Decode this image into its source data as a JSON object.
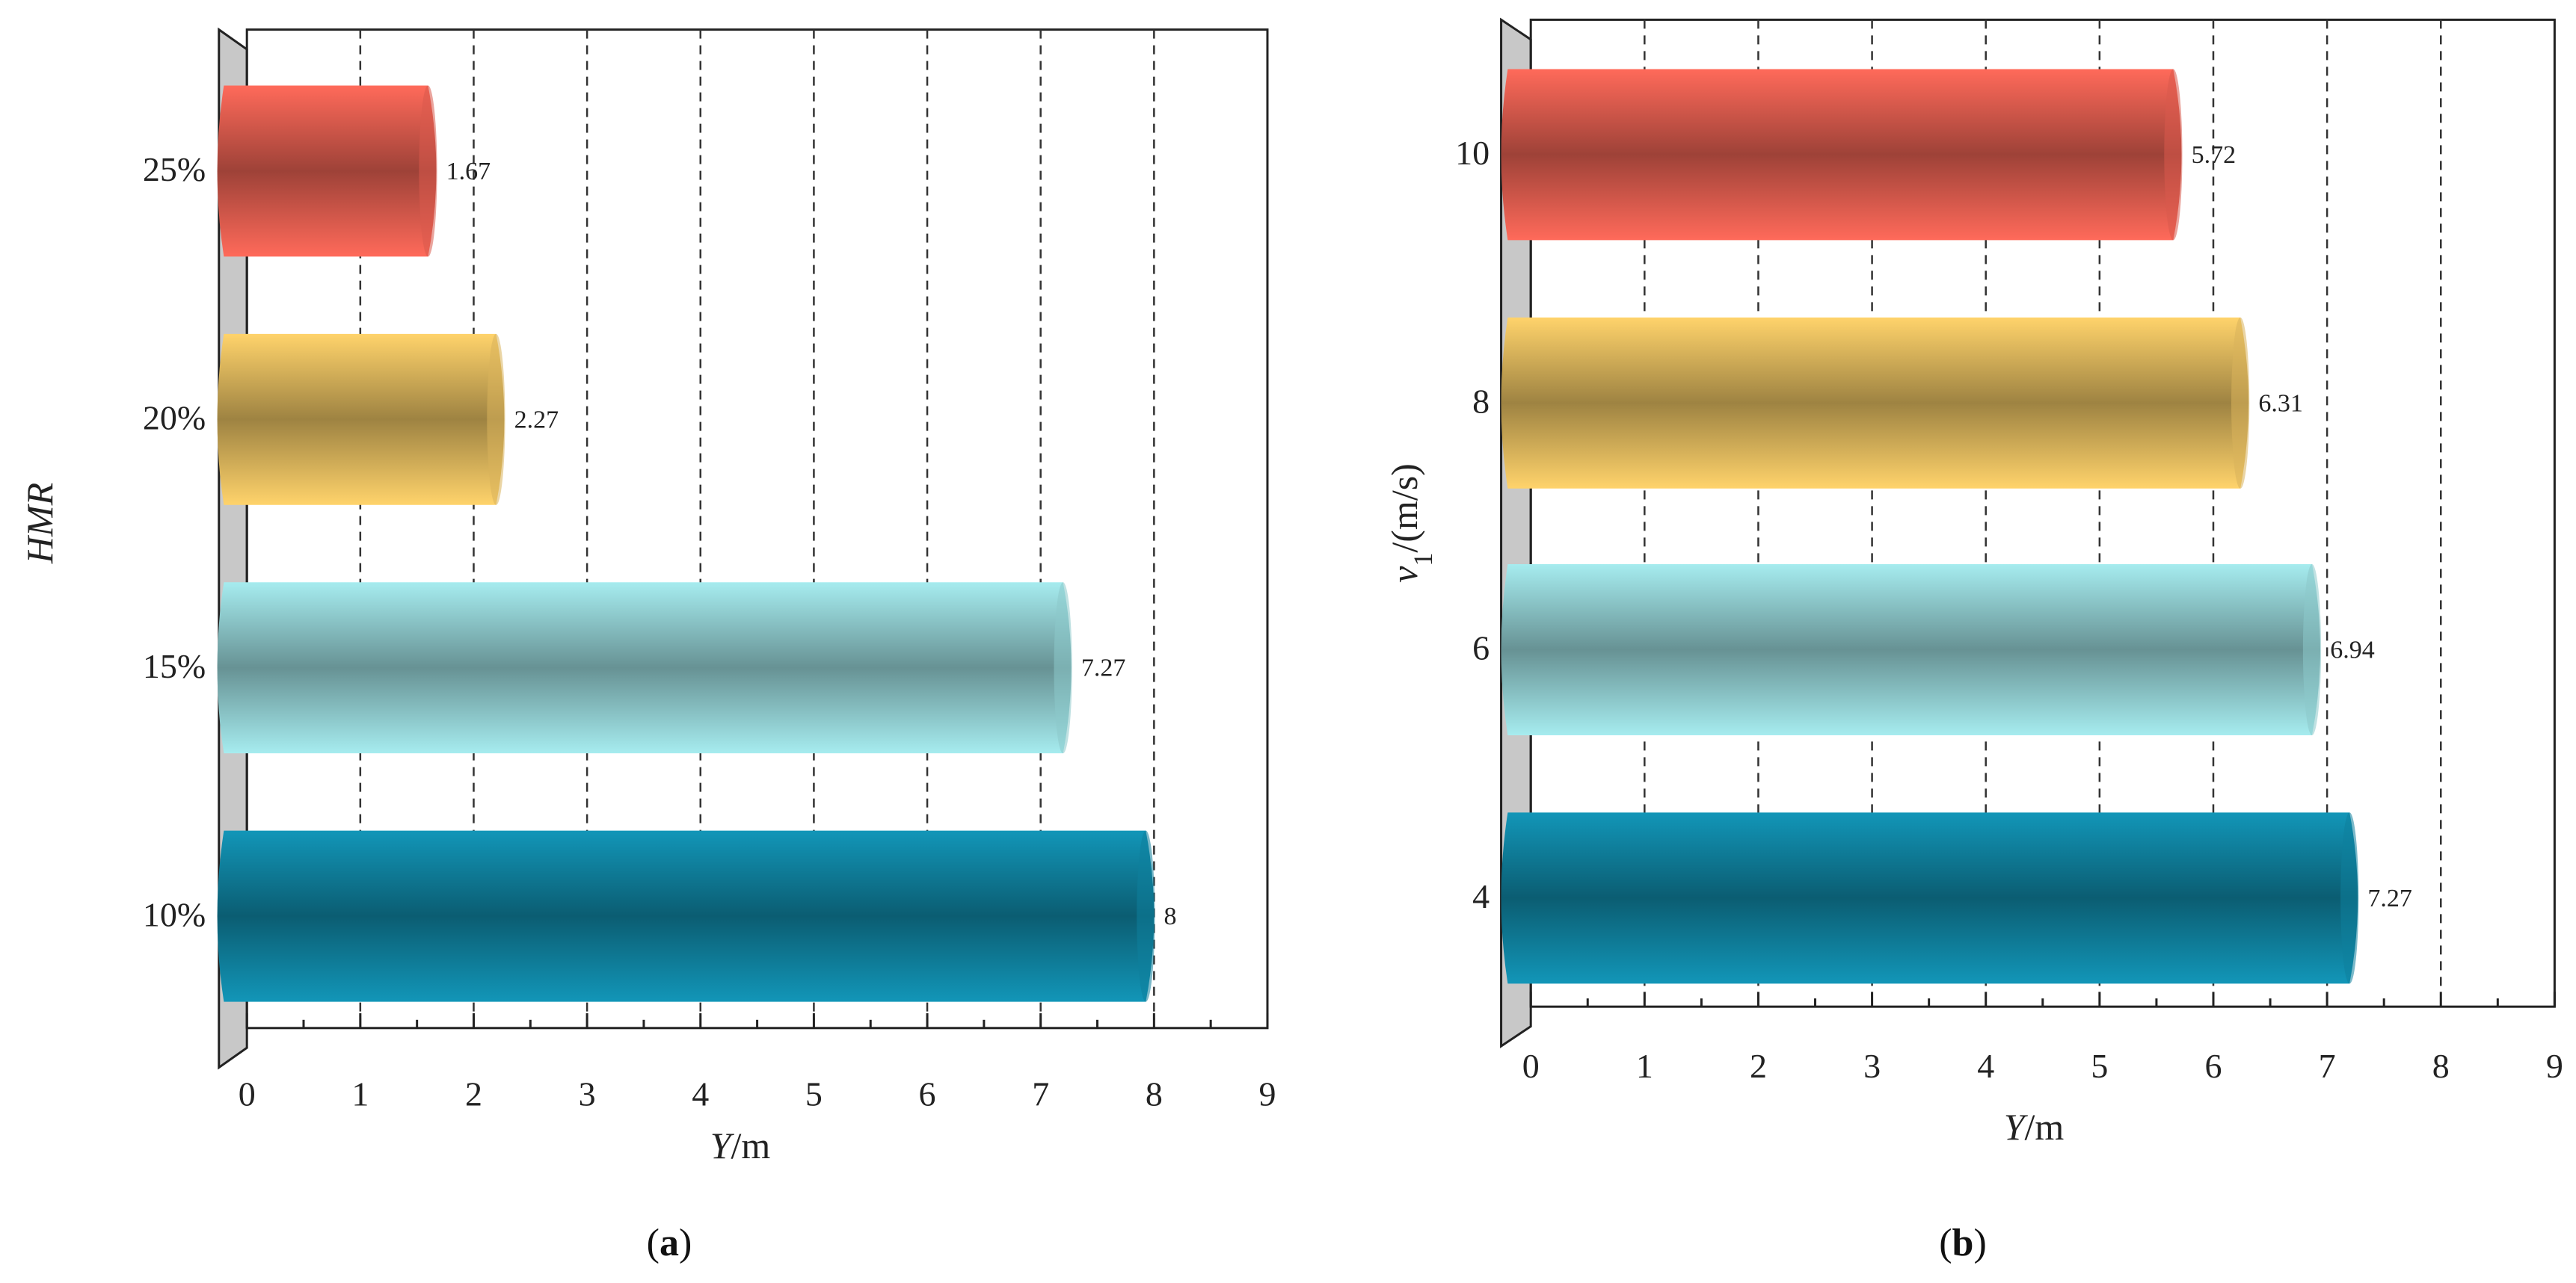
{
  "chart_data": [
    {
      "type": "bar",
      "orientation": "horizontal",
      "panel": "a",
      "caption_paren_open": "(",
      "caption_letter": "a",
      "caption_paren_close": ")",
      "ylabel": "HMR",
      "xlabel_var": "Y",
      "xlabel_unit": "/m",
      "categories": [
        "25%",
        "20%",
        "15%",
        "10%"
      ],
      "values": [
        1.67,
        2.27,
        7.27,
        8
      ],
      "value_labels": [
        "1.67",
        "2.27",
        "7.27",
        "8"
      ],
      "colors": [
        "#ff6a5a",
        "#ffd36b",
        "#a6ecef",
        "#1296b8"
      ],
      "xlim": [
        0,
        9
      ],
      "xticks": [
        "0",
        "1",
        "2",
        "3",
        "4",
        "5",
        "6",
        "7",
        "8",
        "9"
      ],
      "grid": "vertical dashed"
    },
    {
      "type": "bar",
      "orientation": "horizontal",
      "panel": "b",
      "caption_paren_open": "(",
      "caption_letter": "b",
      "caption_paren_close": ")",
      "ylabel_var": "v",
      "ylabel_sub": "1",
      "ylabel_unit": "/(m/s)",
      "xlabel_var": "Y",
      "xlabel_unit": "/m",
      "categories": [
        "10",
        "8",
        "6",
        "4"
      ],
      "values": [
        5.72,
        6.31,
        6.94,
        7.27
      ],
      "value_labels": [
        "5.72",
        "6.31",
        "6.94",
        "7.27"
      ],
      "colors": [
        "#ff6a5a",
        "#ffd36b",
        "#a6ecef",
        "#1296b8"
      ],
      "xlim": [
        0,
        9
      ],
      "xticks": [
        "0",
        "1",
        "2",
        "3",
        "4",
        "5",
        "6",
        "7",
        "8",
        "9"
      ],
      "grid": "vertical dashed"
    }
  ]
}
